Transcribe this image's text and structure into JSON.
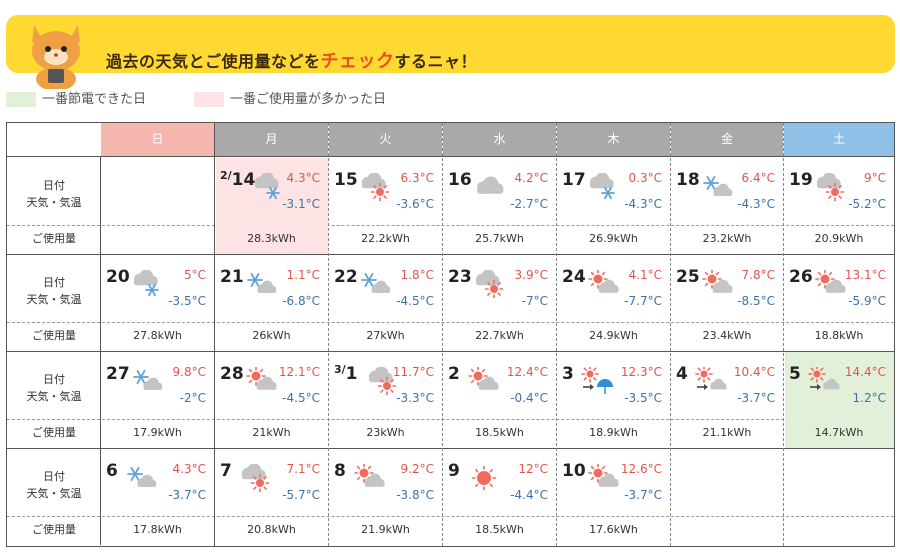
{
  "banner": {
    "title_pre": "過去の天気とご使用量などを",
    "title_highlight": "チェック",
    "title_post": "するニャ！"
  },
  "legend": [
    {
      "label": "一番節電できた日",
      "color": "#e2f0d9"
    },
    {
      "label": "一番ご使用量が多かった日",
      "color": "#fde3e3"
    }
  ],
  "weekdays": [
    "日",
    "月",
    "火",
    "水",
    "木",
    "金",
    "土"
  ],
  "row_labels": {
    "date": "日付",
    "weather": "天気・気温",
    "usage": "ご使用量"
  },
  "colors": {
    "hi_temp": "#e0554a",
    "lo_temp": "#3d72b0",
    "high_day": "#fde3e3",
    "saved_day": "#e2f0d9"
  },
  "weeks": [
    [
      {
        "empty": true
      },
      {
        "month": "2/",
        "day": "14",
        "icon": "cloud-snow-icon",
        "hi": "4.3°C",
        "lo": "-3.1°C",
        "usage": "28.3kWh",
        "mark": "high"
      },
      {
        "day": "15",
        "icon": "cloud-sun-icon",
        "hi": "6.3°C",
        "lo": "-3.6°C",
        "usage": "22.2kWh"
      },
      {
        "day": "16",
        "icon": "cloud-icon",
        "hi": "4.2°C",
        "lo": "-2.7°C",
        "usage": "25.7kWh"
      },
      {
        "day": "17",
        "icon": "cloud-snow-icon",
        "hi": "0.3°C",
        "lo": "-4.3°C",
        "usage": "26.9kWh"
      },
      {
        "day": "18",
        "icon": "snow-cloud-icon",
        "hi": "6.4°C",
        "lo": "-4.3°C",
        "usage": "23.2kWh"
      },
      {
        "day": "19",
        "icon": "cloud-sun-icon",
        "hi": "9°C",
        "lo": "-5.2°C",
        "usage": "20.9kWh"
      }
    ],
    [
      {
        "day": "20",
        "icon": "cloud-snow-icon",
        "hi": "5°C",
        "lo": "-3.5°C",
        "usage": "27.8kWh"
      },
      {
        "day": "21",
        "icon": "snow-cloud-icon",
        "hi": "1.1°C",
        "lo": "-6.8°C",
        "usage": "26kWh"
      },
      {
        "day": "22",
        "icon": "snow-cloud-icon",
        "hi": "1.8°C",
        "lo": "-4.5°C",
        "usage": "27kWh"
      },
      {
        "day": "23",
        "icon": "cloud-sun-icon",
        "hi": "3.9°C",
        "lo": "-7°C",
        "usage": "22.7kWh"
      },
      {
        "day": "24",
        "icon": "sun-cloud-icon",
        "hi": "4.1°C",
        "lo": "-7.7°C",
        "usage": "24.9kWh"
      },
      {
        "day": "25",
        "icon": "sun-cloud-icon",
        "hi": "7.8°C",
        "lo": "-8.5°C",
        "usage": "23.4kWh"
      },
      {
        "day": "26",
        "icon": "sun-cloud-icon",
        "hi": "13.1°C",
        "lo": "-5.9°C",
        "usage": "18.8kWh"
      }
    ],
    [
      {
        "day": "27",
        "icon": "snow-cloud-icon",
        "hi": "9.8°C",
        "lo": "-2°C",
        "usage": "17.9kWh"
      },
      {
        "day": "28",
        "icon": "sun-cloud-icon",
        "hi": "12.1°C",
        "lo": "-4.5°C",
        "usage": "21kWh"
      },
      {
        "month": "3/",
        "day": "1",
        "icon": "cloud-sun-icon",
        "hi": "11.7°C",
        "lo": "-3.3°C",
        "usage": "23kWh"
      },
      {
        "day": "2",
        "icon": "sun-cloud-icon",
        "hi": "12.4°C",
        "lo": "-0.4°C",
        "usage": "18.5kWh"
      },
      {
        "day": "3",
        "icon": "sun-then-umbrella-icon",
        "hi": "12.3°C",
        "lo": "-3.5°C",
        "usage": "18.9kWh"
      },
      {
        "day": "4",
        "icon": "sun-then-cloud-icon",
        "hi": "10.4°C",
        "lo": "-3.7°C",
        "usage": "21.1kWh"
      },
      {
        "day": "5",
        "icon": "sun-then-cloud-icon",
        "hi": "14.4°C",
        "lo": "1.2°C",
        "usage": "14.7kWh",
        "mark": "saved"
      }
    ],
    [
      {
        "day": "6",
        "icon": "snow-cloud-icon",
        "hi": "4.3°C",
        "lo": "-3.7°C",
        "usage": "17.8kWh"
      },
      {
        "day": "7",
        "icon": "cloud-sun-icon",
        "hi": "7.1°C",
        "lo": "-5.7°C",
        "usage": "20.8kWh"
      },
      {
        "day": "8",
        "icon": "sun-cloud-icon",
        "hi": "9.2°C",
        "lo": "-3.8°C",
        "usage": "21.9kWh"
      },
      {
        "day": "9",
        "icon": "sun-icon",
        "hi": "12°C",
        "lo": "-4.4°C",
        "usage": "18.5kWh"
      },
      {
        "day": "10",
        "icon": "sun-cloud-icon",
        "hi": "12.6°C",
        "lo": "-3.7°C",
        "usage": "17.6kWh"
      },
      {
        "empty": true
      },
      {
        "empty": true
      }
    ]
  ]
}
